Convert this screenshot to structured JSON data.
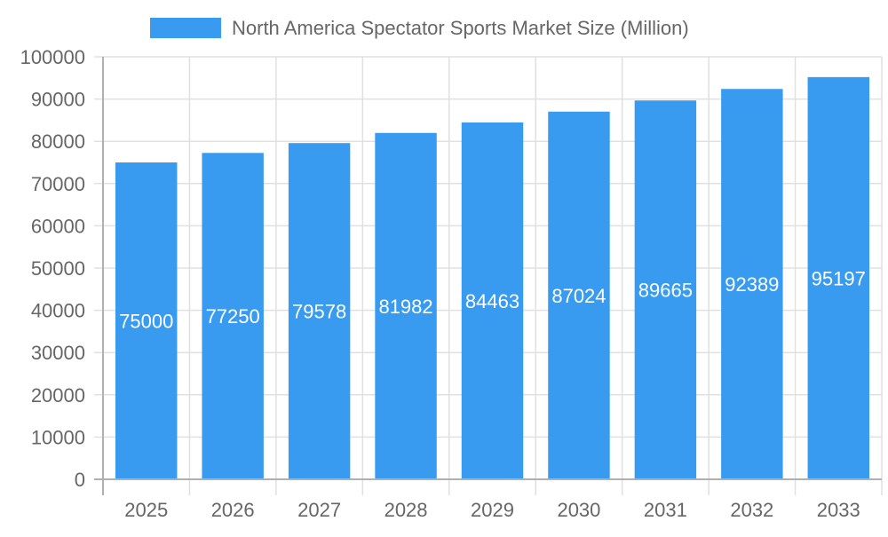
{
  "chart_data": {
    "type": "bar",
    "title": "",
    "xlabel": "",
    "ylabel": "",
    "categories": [
      "2025",
      "2026",
      "2027",
      "2028",
      "2029",
      "2030",
      "2031",
      "2032",
      "2033"
    ],
    "series": [
      {
        "name": "North America Spectator Sports Market Size (Million)",
        "values": [
          75000,
          77250,
          79578,
          81982,
          84463,
          87024,
          89665,
          92389,
          95197
        ]
      }
    ],
    "ylim": [
      0,
      100000
    ],
    "yticks": [
      0,
      10000,
      20000,
      30000,
      40000,
      50000,
      60000,
      70000,
      80000,
      90000,
      100000
    ],
    "grid": true,
    "legend": "top",
    "data_labels": true,
    "colors": {
      "bar": "#389BF0",
      "grid": "#e0e0e0",
      "axis": "#b0b0b0",
      "text": "#666666",
      "label": "#ffffff"
    }
  }
}
